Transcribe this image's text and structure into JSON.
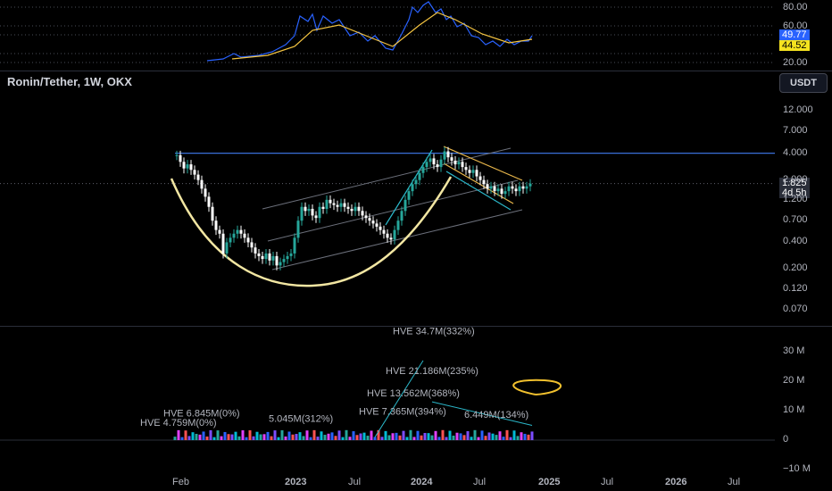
{
  "header": {
    "title": "Ronin/Tether, 1W, OKX",
    "currency": "USDT"
  },
  "rsi_axis": {
    "ticks": [
      "80.00",
      "60.00",
      "20.00"
    ],
    "rsi_value": "49.77",
    "ma_value": "44.52"
  },
  "price_axis": {
    "ticks": [
      "12.000",
      "7.000",
      "4.000",
      "2.000",
      "1.200",
      "0.700",
      "0.400",
      "0.200",
      "0.120",
      "0.070"
    ],
    "last_price": "1.825",
    "countdown": "4d 5h",
    "resistance_level": 4.0
  },
  "volume_axis": {
    "ticks": [
      "30 M",
      "20 M",
      "10 M",
      "0",
      "−10 M"
    ]
  },
  "time_axis": {
    "ticks": [
      "Feb",
      "2023",
      "Jul",
      "2024",
      "Jul",
      "2025",
      "Jul",
      "2026",
      "Jul"
    ]
  },
  "volume_annotations": [
    {
      "text": "HVE 34.7M(332%)"
    },
    {
      "text": "HVE 21.186M(235%)"
    },
    {
      "text": "HVE 13.562M(368%)"
    },
    {
      "text": "HVE 7.365M(394%)"
    },
    {
      "text": "6.449M(134%)"
    },
    {
      "text": "HVE 6.845M(0%)"
    },
    {
      "text": "5.045M(312%)"
    },
    {
      "text": "HVE 4.759M(0%)"
    }
  ],
  "colors": {
    "up": "#26a69a",
    "down": "#ffffff",
    "rsi": "#2962ff",
    "rsi_ma": "#f5c542",
    "cup": "#f2e6a2",
    "channel": "#6b6f7a"
  },
  "chart_data": {
    "type": "candlestick",
    "title": "Ronin/Tether, 1W, OKX",
    "yscale": "log",
    "ylim": [
      0.06,
      14
    ],
    "series": [
      {
        "name": "price_close_approx",
        "x": [
          "2022-02",
          "2022-05",
          "2022-09",
          "2022-12",
          "2023-03",
          "2023-06",
          "2023-09",
          "2023-11",
          "2024-01",
          "2024-03",
          "2024-06",
          "2024-09",
          "2024-11"
        ],
        "values": [
          4.0,
          0.5,
          0.25,
          0.22,
          1.1,
          0.9,
          0.45,
          1.5,
          3.0,
          4.2,
          2.7,
          1.6,
          1.825
        ]
      }
    ],
    "volume": {
      "ylim": [
        -10,
        35
      ],
      "unit": "M",
      "peak": 34.7
    }
  }
}
